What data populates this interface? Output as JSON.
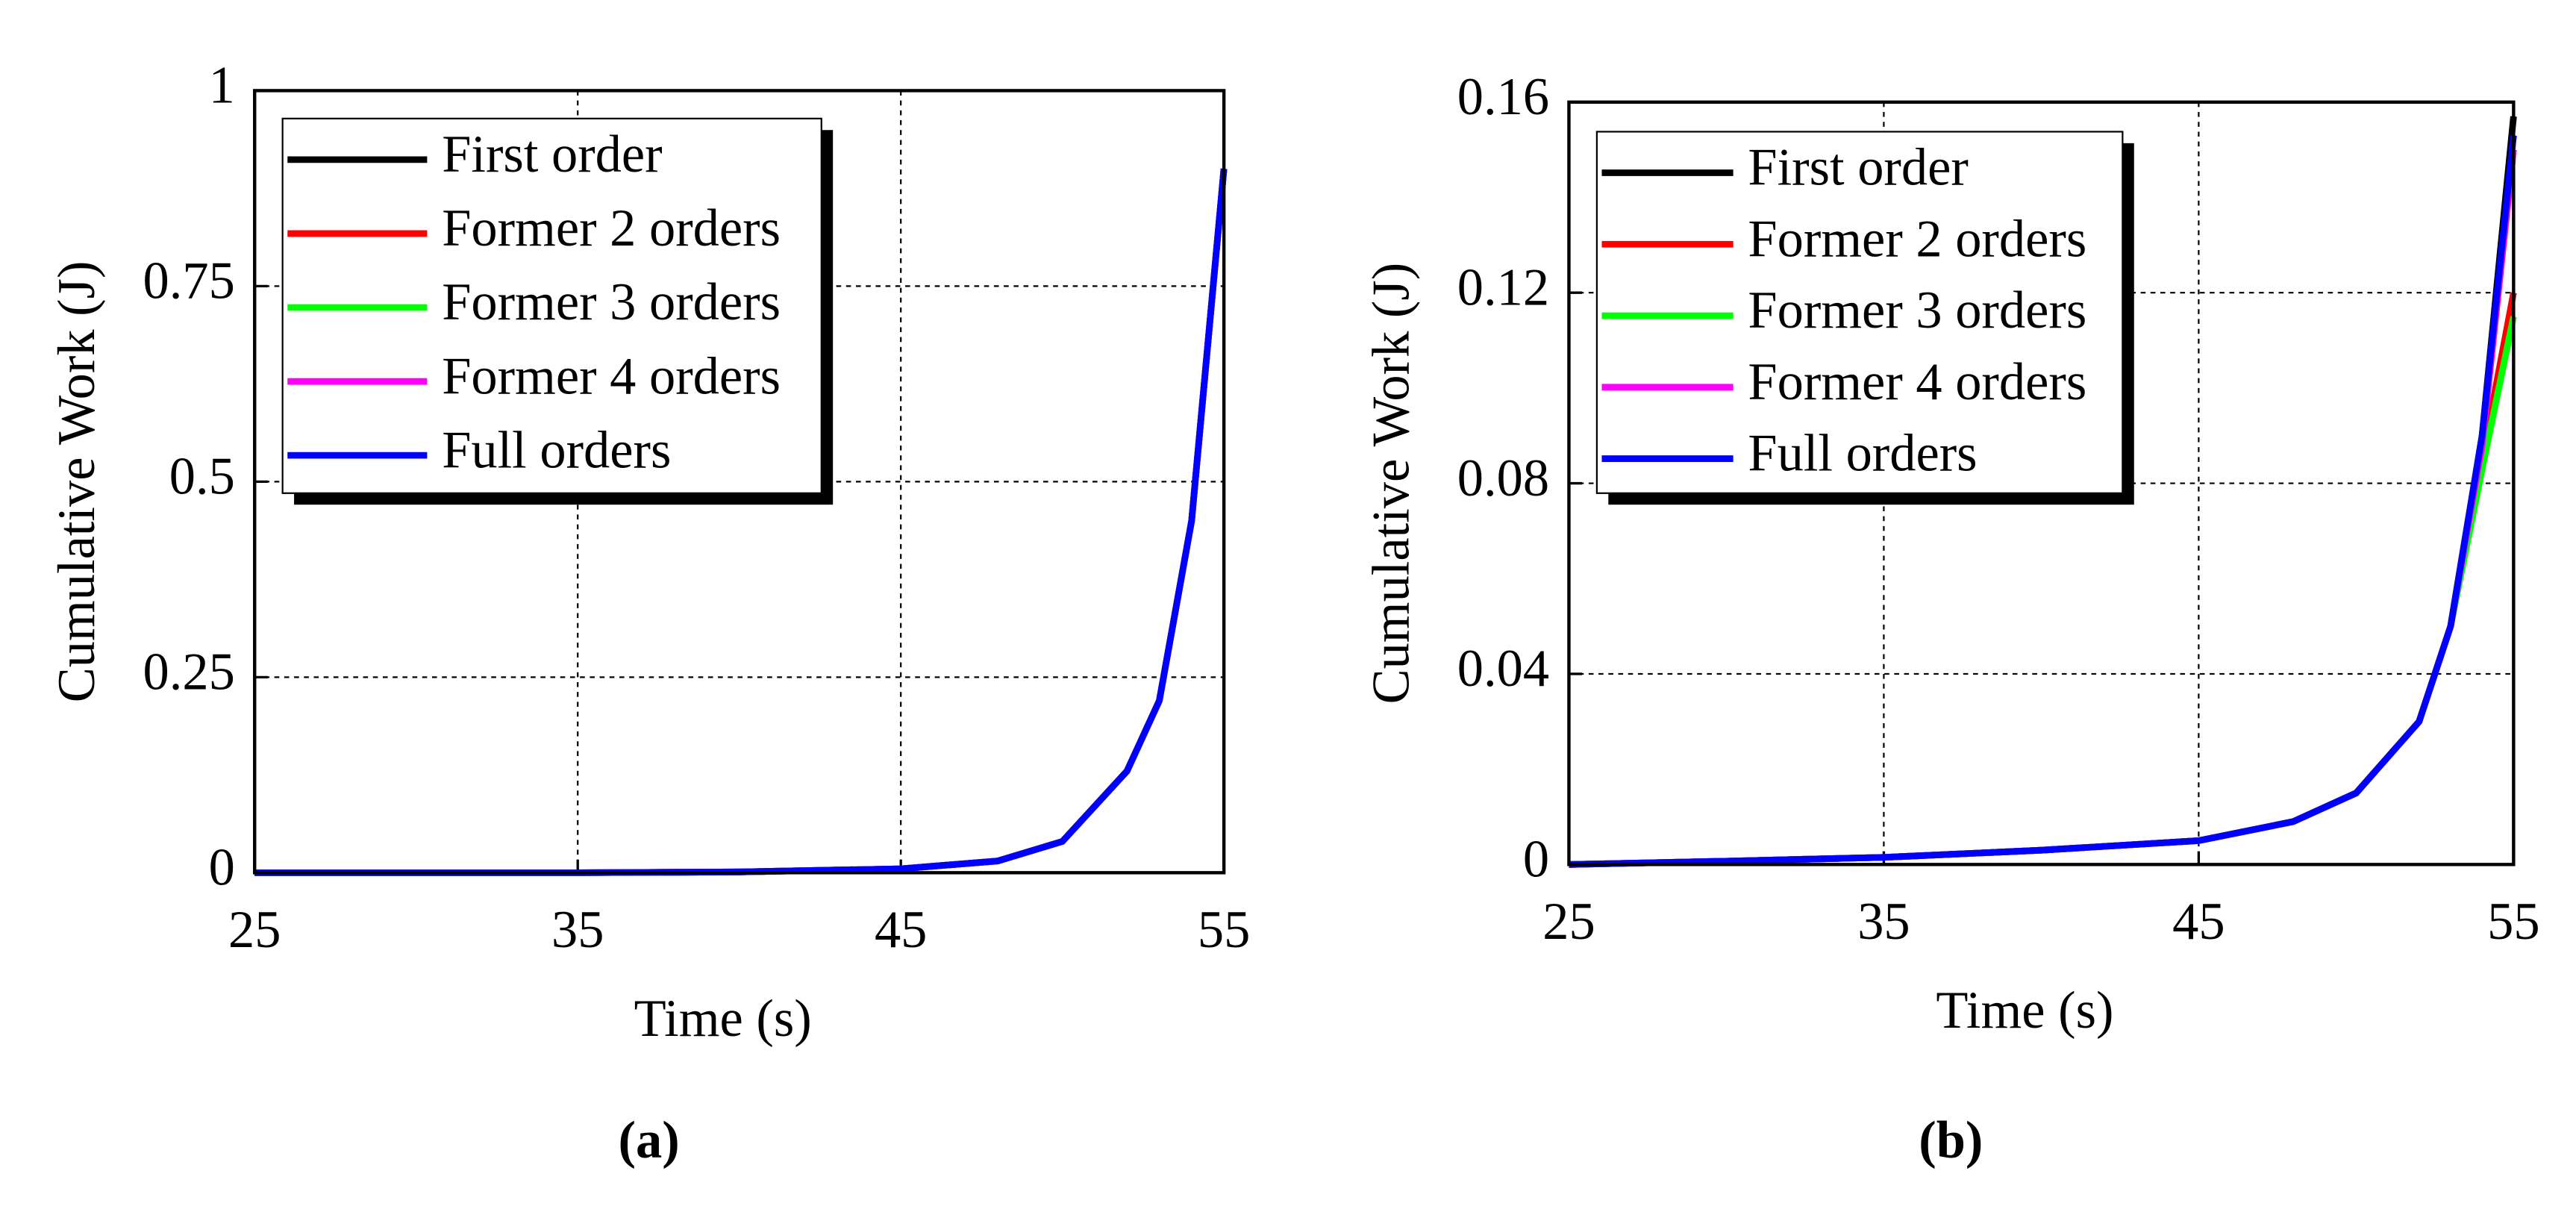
{
  "chart_data": [
    {
      "type": "line",
      "caption": "(a)",
      "xlabel": "Time (s)",
      "ylabel": "Cumulative Work (J)",
      "x": [
        25,
        30,
        35,
        40,
        45,
        48,
        50,
        52,
        53,
        54,
        55
      ],
      "xlim": [
        25,
        55
      ],
      "xticks": [
        25,
        35,
        45,
        55
      ],
      "ylim": [
        0,
        1
      ],
      "yticks": [
        0,
        0.25,
        0.5,
        0.75,
        1
      ],
      "grid": true,
      "legend": "upper left",
      "series": [
        {
          "name": "First order",
          "color": "#000000",
          "values": [
            0,
            0,
            0,
            0.001,
            0.005,
            0.015,
            0.04,
            0.13,
            0.22,
            0.45,
            0.9
          ]
        },
        {
          "name": "Former 2 orders",
          "color": "#ff0000",
          "values": [
            0,
            0,
            0,
            0.001,
            0.005,
            0.015,
            0.04,
            0.13,
            0.22,
            0.45,
            0.9
          ]
        },
        {
          "name": "Former 3 orders",
          "color": "#00ff00",
          "values": [
            0,
            0,
            0,
            0.001,
            0.005,
            0.015,
            0.04,
            0.13,
            0.22,
            0.45,
            0.9
          ]
        },
        {
          "name": "Former 4 orders",
          "color": "#ff00ff",
          "values": [
            0,
            0,
            0,
            0.001,
            0.005,
            0.015,
            0.04,
            0.13,
            0.22,
            0.45,
            0.9
          ]
        },
        {
          "name": "Full orders",
          "color": "#0000ff",
          "values": [
            0,
            0,
            0,
            0.001,
            0.005,
            0.015,
            0.04,
            0.13,
            0.22,
            0.45,
            0.9
          ]
        }
      ]
    },
    {
      "type": "line",
      "caption": "(b)",
      "xlabel": "Time (s)",
      "ylabel": "Cumulative Work (J)",
      "x": [
        25,
        30,
        35,
        40,
        45,
        48,
        50,
        52,
        53,
        54,
        55
      ],
      "xlim": [
        25,
        55
      ],
      "xticks": [
        25,
        35,
        45,
        55
      ],
      "ylim": [
        0,
        0.16
      ],
      "yticks": [
        0,
        0.04,
        0.08,
        0.12,
        0.16
      ],
      "grid": true,
      "legend": "upper left",
      "series": [
        {
          "name": "First order",
          "color": "#000000",
          "values": [
            0,
            0.0007,
            0.0015,
            0.003,
            0.005,
            0.009,
            0.015,
            0.03,
            0.05,
            0.09,
            0.157
          ]
        },
        {
          "name": "Former 2 orders",
          "color": "#ff0000",
          "values": [
            0,
            0.0007,
            0.0015,
            0.003,
            0.005,
            0.009,
            0.015,
            0.03,
            0.05,
            0.085,
            0.12
          ]
        },
        {
          "name": "Former 3 orders",
          "color": "#00ff00",
          "values": [
            0,
            0.0007,
            0.0015,
            0.003,
            0.005,
            0.009,
            0.015,
            0.03,
            0.05,
            0.083,
            0.115
          ]
        },
        {
          "name": "Former 4 orders",
          "color": "#ff00ff",
          "values": [
            0,
            0.0007,
            0.0015,
            0.003,
            0.005,
            0.009,
            0.015,
            0.03,
            0.05,
            0.088,
            0.15
          ]
        },
        {
          "name": "Full orders",
          "color": "#0000ff",
          "values": [
            0,
            0.0007,
            0.0015,
            0.003,
            0.005,
            0.009,
            0.015,
            0.03,
            0.05,
            0.09,
            0.153
          ]
        }
      ]
    }
  ]
}
